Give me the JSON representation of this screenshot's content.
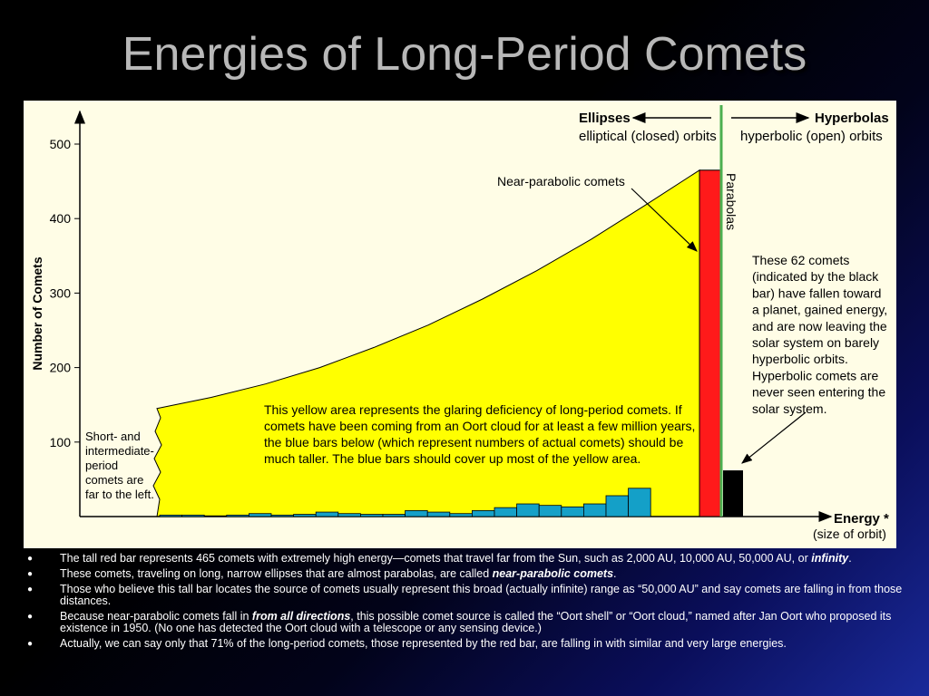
{
  "title": "Energies of Long-Period Comets",
  "colors": {
    "background": "#fffde6",
    "area": "#ffff00",
    "red_bar": "#ff1a1a",
    "blue_bars": "#14a0c8",
    "black_bar": "#000000",
    "parabola_line": "#4caf50"
  },
  "chart_data": {
    "type": "bar",
    "ylabel": "Number of Comets",
    "xlabel": "Energy *",
    "xlabel_sub": "(size of orbit)",
    "yticks": [
      100,
      200,
      300,
      400,
      500
    ],
    "ylim": [
      0,
      530
    ],
    "blue_bars": [
      2,
      2,
      1,
      2,
      4,
      2,
      3,
      6,
      4,
      3,
      3,
      8,
      6,
      4,
      8,
      12,
      17,
      15,
      13,
      17,
      28,
      38
    ],
    "red_bar": 465,
    "black_bar": 62,
    "yellow_area_curve": [
      {
        "pos": 0,
        "value": 145
      },
      {
        "pos": 0.1,
        "value": 160
      },
      {
        "pos": 0.2,
        "value": 178
      },
      {
        "pos": 0.3,
        "value": 200
      },
      {
        "pos": 0.4,
        "value": 227
      },
      {
        "pos": 0.5,
        "value": 257
      },
      {
        "pos": 0.6,
        "value": 292
      },
      {
        "pos": 0.7,
        "value": 330
      },
      {
        "pos": 0.8,
        "value": 372
      },
      {
        "pos": 0.9,
        "value": 418
      },
      {
        "pos": 1,
        "value": 465
      }
    ],
    "annotations": {
      "ellipses": "Ellipses",
      "ellipses_sub": "elliptical (closed) orbits",
      "hyperbolas": "Hyperbolas",
      "hyperbolas_sub": "hyperbolic (open) orbits",
      "near_parabolic": "Near-parabolic comets",
      "parabolas": "Parabolas",
      "short_period": [
        "Short- and",
        "intermediate-",
        "period",
        "comets are",
        "far to the left."
      ],
      "yellow_area": [
        "This yellow area represents the glaring deficiency of long-period comets. If",
        "comets have been coming from an Oort cloud for at least a few million years,",
        "the blue bars below (which represent numbers of actual comets) should be",
        "much taller. The blue bars should cover up most of the yellow area."
      ],
      "black_bar_note": [
        "These 62 comets",
        "(indicated by the black",
        "bar) have fallen toward",
        "a planet, gained energy,",
        "and are now leaving the",
        "solar system on barely",
        "hyperbolic orbits.",
        "Hyperbolic comets are",
        "never seen entering the",
        "solar system."
      ]
    }
  },
  "bullets": [
    {
      "pre": "The tall red bar represents 465 comets with extremely high energy—comets that travel far from the Sun, such as 2,000 AU, 10,000 AU, 50,000 AU, or ",
      "em": "infinity",
      "post": "."
    },
    {
      "pre": "These comets, traveling on long, narrow ellipses that are almost parabolas, are called ",
      "em": "near-parabolic comets",
      "post": "."
    },
    {
      "pre": "Those who believe this tall bar locates the source of comets usually represent this broad (actually infinite) range as “50,000 AU” and say comets are falling in from those distances.",
      "em": "",
      "post": ""
    },
    {
      "pre": "Because near-parabolic comets fall in ",
      "em": "from all directions",
      "post": ", this possible comet source is called the “Oort shell” or “Oort cloud,” named after Jan Oort who proposed its existence in 1950. (No one has detected the Oort cloud with a telescope or any sensing device.)"
    },
    {
      "pre": "Actually, we can say only that 71% of the long-period comets, those represented by the red bar, are falling in with similar and very large energies.",
      "em": "",
      "post": ""
    }
  ],
  "bullet_symbol": "●"
}
